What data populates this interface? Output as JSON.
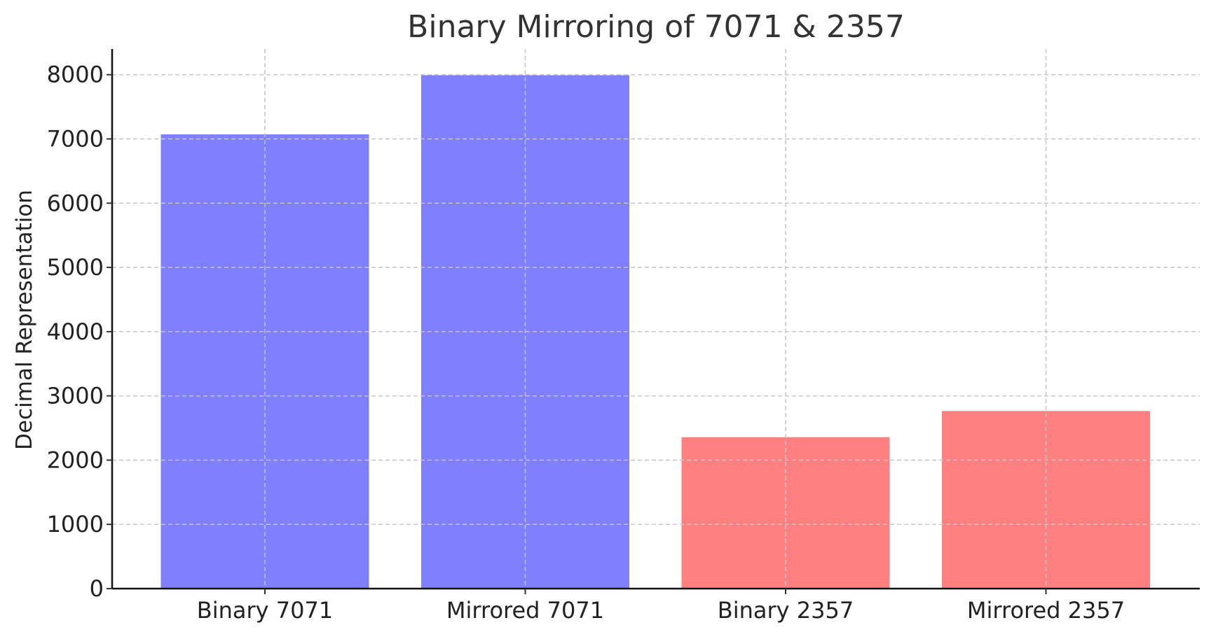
{
  "chart_data": {
    "type": "bar",
    "title": "Binary Mirroring of 7071 & 2357",
    "xlabel": "",
    "ylabel": "Decimal Representation",
    "categories": [
      "Binary 7071",
      "Mirrored 7071",
      "Binary 2357",
      "Mirrored 2357"
    ],
    "values": [
      7071,
      7992,
      2357,
      2765
    ],
    "bar_colors": [
      "#8080ff",
      "#8080ff",
      "#ff8080",
      "#ff8080"
    ],
    "ylim": [
      0,
      8400
    ],
    "yticks": [
      0,
      1000,
      2000,
      3000,
      4000,
      5000,
      6000,
      7000,
      8000
    ],
    "ytick_labels": [
      "0",
      "1000",
      "2000",
      "3000",
      "4000",
      "5000",
      "6000",
      "7000",
      "8000"
    ],
    "grid": true
  }
}
